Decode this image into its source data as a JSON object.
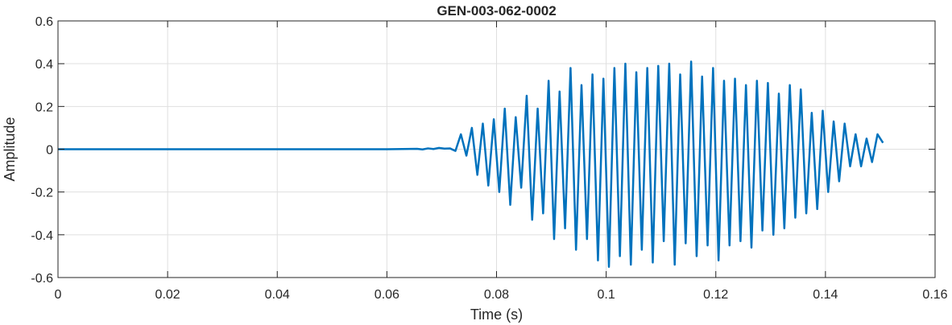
{
  "chart_data": {
    "type": "line",
    "title": "GEN-003-062-0002",
    "xlabel": "Time (s)",
    "ylabel": "Amplitude",
    "xlim": [
      0,
      0.16
    ],
    "ylim": [
      -0.6,
      0.6
    ],
    "grid": true,
    "x_ticks": [
      {
        "value": 0,
        "label": "0"
      },
      {
        "value": 0.02,
        "label": "0.02"
      },
      {
        "value": 0.04,
        "label": "0.04"
      },
      {
        "value": 0.06,
        "label": "0.06"
      },
      {
        "value": 0.08,
        "label": "0.08"
      },
      {
        "value": 0.1,
        "label": "0.1"
      },
      {
        "value": 0.12,
        "label": "0.12"
      },
      {
        "value": 0.14,
        "label": "0.14"
      },
      {
        "value": 0.16,
        "label": "0.16"
      }
    ],
    "y_ticks": [
      {
        "value": 0.6,
        "label": "0.6"
      },
      {
        "value": 0.4,
        "label": "0.4"
      },
      {
        "value": 0.2,
        "label": "0.2"
      },
      {
        "value": 0,
        "label": "0"
      },
      {
        "value": -0.2,
        "label": "-0.2"
      },
      {
        "value": -0.4,
        "label": "-0.4"
      },
      {
        "value": -0.6,
        "label": "-0.6"
      }
    ],
    "series": [
      {
        "color": "#0072BD",
        "x": [
          0,
          0.06,
          0.0655,
          0.0665,
          0.0675,
          0.0685,
          0.0695,
          0.0705,
          0.0715,
          0.0725,
          0.0735,
          0.0745,
          0.0755,
          0.0765,
          0.0775,
          0.0785,
          0.0795,
          0.0805,
          0.0815,
          0.0825,
          0.0835,
          0.0845,
          0.0855,
          0.0865,
          0.0875,
          0.0885,
          0.0895,
          0.0905,
          0.0915,
          0.0925,
          0.0935,
          0.0945,
          0.0955,
          0.0965,
          0.0975,
          0.0985,
          0.0995,
          0.1005,
          0.1015,
          0.1025,
          0.1035,
          0.1045,
          0.1055,
          0.1065,
          0.1075,
          0.1085,
          0.1095,
          0.1105,
          0.1115,
          0.1125,
          0.1135,
          0.1145,
          0.1155,
          0.1165,
          0.1175,
          0.1185,
          0.1195,
          0.1205,
          0.1215,
          0.1225,
          0.1235,
          0.1245,
          0.1255,
          0.1265,
          0.1275,
          0.1285,
          0.1295,
          0.1305,
          0.1315,
          0.1325,
          0.1335,
          0.1345,
          0.1355,
          0.1365,
          0.1375,
          0.1385,
          0.1395,
          0.1405,
          0.1415,
          0.1425,
          0.1435,
          0.1445,
          0.1455,
          0.1465,
          0.1475,
          0.1485,
          0.1495,
          0.1505
        ],
        "y": [
          0,
          0,
          0.002,
          -0.001,
          0.004,
          0.001,
          0.006,
          0.003,
          0.004,
          -0.008,
          0.07,
          -0.03,
          0.1,
          -0.12,
          0.12,
          -0.17,
          0.14,
          -0.2,
          0.19,
          -0.26,
          0.15,
          -0.18,
          0.25,
          -0.33,
          0.19,
          -0.3,
          0.32,
          -0.42,
          0.27,
          -0.37,
          0.38,
          -0.47,
          0.3,
          -0.42,
          0.35,
          -0.52,
          0.33,
          -0.55,
          0.38,
          -0.5,
          0.4,
          -0.54,
          0.36,
          -0.47,
          0.38,
          -0.53,
          0.39,
          -0.43,
          0.4,
          -0.54,
          0.35,
          -0.44,
          0.41,
          -0.5,
          0.34,
          -0.45,
          0.38,
          -0.52,
          0.32,
          -0.45,
          0.33,
          -0.43,
          0.3,
          -0.46,
          0.32,
          -0.38,
          0.31,
          -0.4,
          0.26,
          -0.37,
          0.3,
          -0.32,
          0.28,
          -0.3,
          0.17,
          -0.28,
          0.18,
          -0.2,
          0.13,
          -0.15,
          0.12,
          -0.08,
          0.07,
          -0.08,
          0.05,
          -0.06,
          0.07,
          0.03
        ]
      }
    ]
  }
}
